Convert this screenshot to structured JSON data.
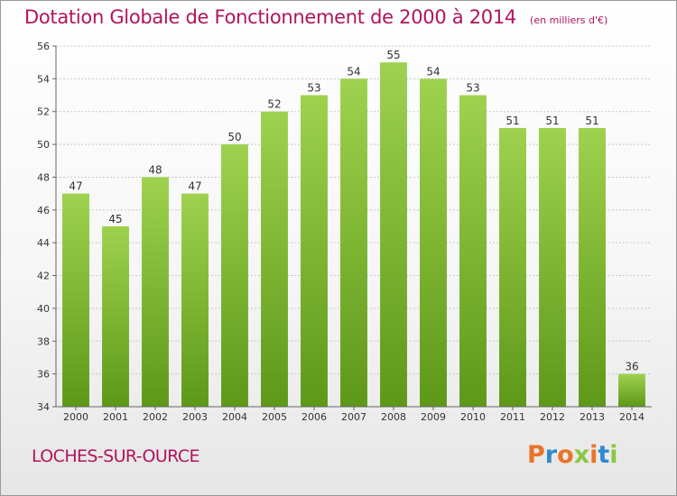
{
  "title": "Dotation Globale de Fonctionnement de 2000 à 2014",
  "subtitle": "(en milliers d'€)",
  "commune": "LOCHES-SUR-OURCE",
  "logo": {
    "text": "Proxiti",
    "colors": [
      "#e8742a",
      "#2f8ad0",
      "#e8742a",
      "#8cc63f",
      "#e8742a",
      "#2f8ad0",
      "#8cc63f"
    ]
  },
  "colors": {
    "bar_top": "#9ed24e",
    "bar_bottom": "#5e9818",
    "title": "#b0145e",
    "grid": "#c8c8c8",
    "axis_text": "#333333"
  },
  "chart_data": {
    "type": "bar",
    "categories": [
      "2000",
      "2001",
      "2002",
      "2003",
      "2004",
      "2005",
      "2006",
      "2007",
      "2008",
      "2009",
      "2010",
      "2011",
      "2012",
      "2013",
      "2014"
    ],
    "values": [
      47,
      45,
      48,
      47,
      50,
      52,
      53,
      54,
      55,
      54,
      53,
      51,
      51,
      51,
      36
    ],
    "ylim": [
      34,
      56
    ],
    "yticks": [
      34,
      36,
      38,
      40,
      42,
      44,
      46,
      48,
      50,
      52,
      54,
      56
    ],
    "grid": true,
    "data_labels": true
  }
}
